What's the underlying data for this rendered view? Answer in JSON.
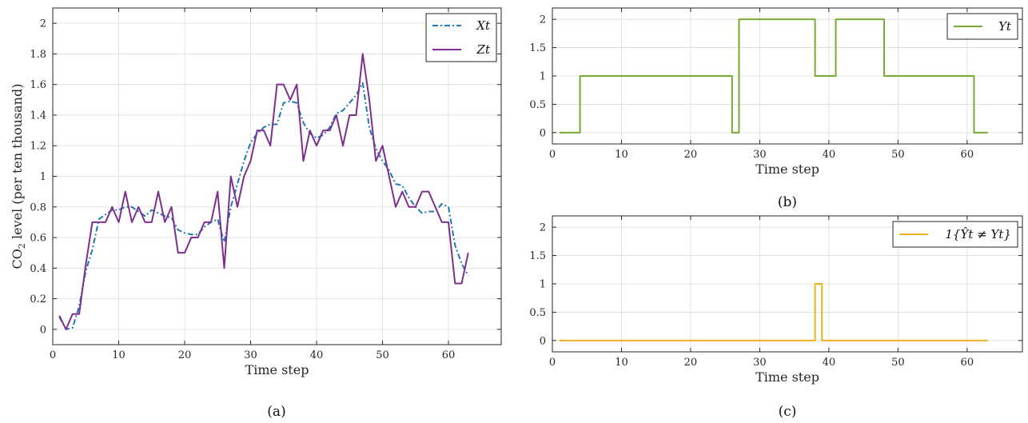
{
  "chart_data": [
    {
      "panel": "a",
      "type": "line",
      "caption": "(a)",
      "xlabel": "Time step",
      "ylabel": "CO₂ level (per ten thousand)",
      "xlim": [
        0,
        68
      ],
      "ylim": [
        -0.1,
        2.1
      ],
      "xticks": [
        0,
        10,
        20,
        30,
        40,
        50,
        60
      ],
      "yticks": [
        0,
        0.2,
        0.4,
        0.6,
        0.8,
        1,
        1.2,
        1.4,
        1.6,
        1.8,
        2
      ],
      "grid": true,
      "legend_position": "top-right",
      "x": [
        1,
        2,
        3,
        4,
        5,
        6,
        7,
        8,
        9,
        10,
        11,
        12,
        13,
        14,
        15,
        16,
        17,
        18,
        19,
        20,
        21,
        22,
        23,
        24,
        25,
        26,
        27,
        28,
        29,
        30,
        31,
        32,
        33,
        34,
        35,
        36,
        37,
        38,
        39,
        40,
        41,
        42,
        43,
        44,
        45,
        46,
        47,
        48,
        49,
        50,
        51,
        52,
        53,
        54,
        55,
        56,
        57,
        58,
        59,
        60,
        61,
        62,
        63
      ],
      "series": [
        {
          "name": "X_t",
          "legend_label": "Xt",
          "color": "#1f77b4",
          "dash": "dashdot",
          "values": [
            0.08,
            0.0,
            0.01,
            0.15,
            0.38,
            0.52,
            0.72,
            0.75,
            0.78,
            0.78,
            0.8,
            0.8,
            0.77,
            0.74,
            0.78,
            0.76,
            0.74,
            0.73,
            0.65,
            0.63,
            0.62,
            0.62,
            0.67,
            0.7,
            0.72,
            0.57,
            0.8,
            0.95,
            1.1,
            1.22,
            1.28,
            1.32,
            1.34,
            1.34,
            1.48,
            1.49,
            1.48,
            1.35,
            1.28,
            1.25,
            1.27,
            1.32,
            1.41,
            1.43,
            1.48,
            1.53,
            1.61,
            1.32,
            1.18,
            1.1,
            1.04,
            0.95,
            0.94,
            0.86,
            0.8,
            0.76,
            0.77,
            0.77,
            0.82,
            0.8,
            0.55,
            0.43,
            0.35
          ]
        },
        {
          "name": "Z_t",
          "legend_label": "Zt",
          "color": "#7e2f8e",
          "dash": "solid",
          "values": [
            0.09,
            0.0,
            0.1,
            0.1,
            0.42,
            0.7,
            0.7,
            0.7,
            0.8,
            0.7,
            0.9,
            0.7,
            0.8,
            0.7,
            0.7,
            0.9,
            0.7,
            0.8,
            0.5,
            0.5,
            0.6,
            0.6,
            0.7,
            0.7,
            0.9,
            0.4,
            1.0,
            0.8,
            1.0,
            1.1,
            1.3,
            1.3,
            1.2,
            1.6,
            1.6,
            1.5,
            1.6,
            1.1,
            1.3,
            1.2,
            1.3,
            1.3,
            1.4,
            1.2,
            1.4,
            1.4,
            1.8,
            1.5,
            1.1,
            1.2,
            1.0,
            0.8,
            0.9,
            0.8,
            0.8,
            0.9,
            0.9,
            0.8,
            0.7,
            0.7,
            0.3,
            0.3,
            0.5
          ]
        }
      ]
    },
    {
      "panel": "b",
      "type": "line",
      "caption": "(b)",
      "xlabel": "Time step",
      "ylabel": "",
      "xlim": [
        0,
        68
      ],
      "ylim": [
        -0.2,
        2.2
      ],
      "xticks": [
        0,
        10,
        20,
        30,
        40,
        50,
        60
      ],
      "yticks": [
        0,
        0.5,
        1,
        1.5,
        2
      ],
      "grid": true,
      "step": true,
      "legend_position": "top-right",
      "series": [
        {
          "name": "Y_t",
          "legend_label": "Yt",
          "color": "#77ac30",
          "points": [
            [
              1,
              0
            ],
            [
              4,
              0
            ],
            [
              4,
              1
            ],
            [
              26,
              1
            ],
            [
              26,
              0
            ],
            [
              27,
              0
            ],
            [
              27,
              2
            ],
            [
              38,
              2
            ],
            [
              38,
              1
            ],
            [
              41,
              1
            ],
            [
              41,
              2
            ],
            [
              48,
              2
            ],
            [
              48,
              1
            ],
            [
              61,
              1
            ],
            [
              61,
              0
            ],
            [
              63,
              0
            ]
          ]
        }
      ]
    },
    {
      "panel": "c",
      "type": "line",
      "caption": "(c)",
      "xlabel": "Time step",
      "ylabel": "",
      "xlim": [
        0,
        68
      ],
      "ylim": [
        -0.2,
        2.2
      ],
      "xticks": [
        0,
        10,
        20,
        30,
        40,
        50,
        60
      ],
      "yticks": [
        0,
        0.5,
        1,
        1.5,
        2
      ],
      "grid": true,
      "step": true,
      "legend_position": "top-right",
      "series": [
        {
          "name": "1{Ŷ_t ≠ Y_t}",
          "legend_label": "1{Ŷt ≠ Yt}",
          "color": "#edb120",
          "points": [
            [
              1,
              0
            ],
            [
              38,
              0
            ],
            [
              38,
              1
            ],
            [
              39,
              1
            ],
            [
              39,
              0
            ],
            [
              63,
              0
            ]
          ]
        }
      ]
    }
  ]
}
